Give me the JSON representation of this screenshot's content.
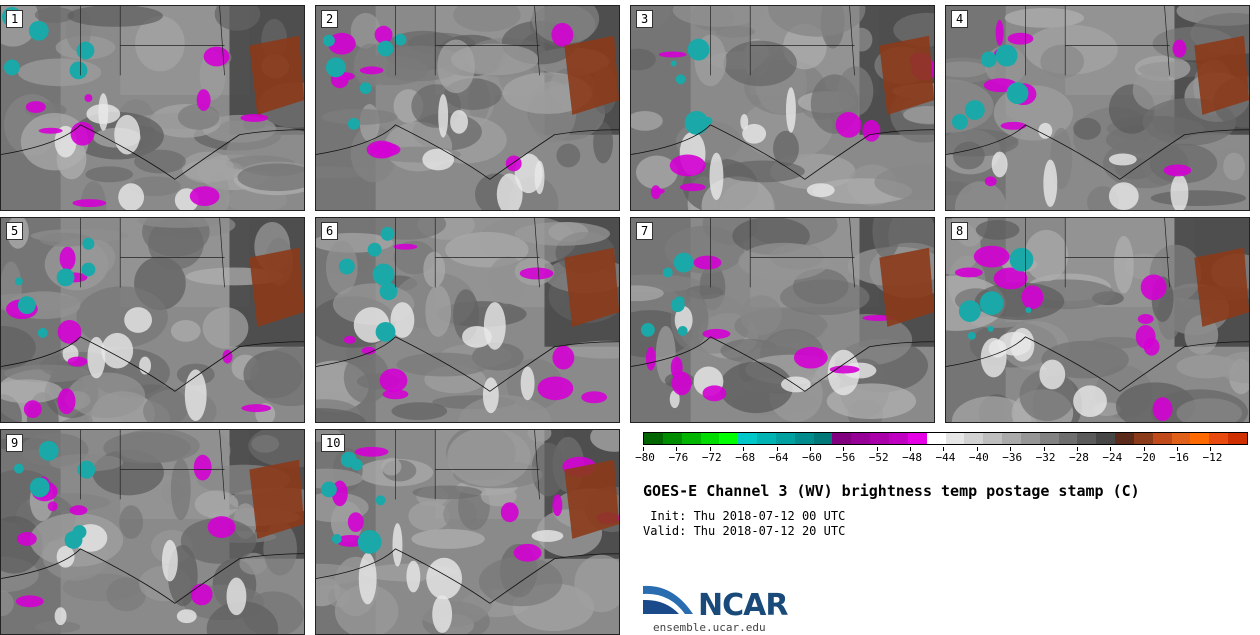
{
  "panels": [
    {
      "label": "1"
    },
    {
      "label": "2"
    },
    {
      "label": "3"
    },
    {
      "label": "4"
    },
    {
      "label": "5"
    },
    {
      "label": "6"
    },
    {
      "label": "7"
    },
    {
      "label": "8"
    },
    {
      "label": "9"
    },
    {
      "label": "10"
    }
  ],
  "colorbar": {
    "colors": [
      "#006400",
      "#008c00",
      "#00b400",
      "#00dc00",
      "#00ff00",
      "#00c8c8",
      "#00b4b4",
      "#00a0a0",
      "#008c8c",
      "#007878",
      "#800080",
      "#960096",
      "#aa00aa",
      "#c000c0",
      "#e600e6",
      "#ffffff",
      "#e6e6e6",
      "#d2d2d2",
      "#bebebe",
      "#aaaaaa",
      "#969696",
      "#828282",
      "#6e6e6e",
      "#5a5a5a",
      "#464646",
      "#5a2a1a",
      "#8b3a1a",
      "#c04a1a",
      "#e0601a",
      "#ff6a00",
      "#e84a10",
      "#d03000"
    ],
    "tick_labels": [
      "−80",
      "−76",
      "−72",
      "−68",
      "−64",
      "−60",
      "−56",
      "−52",
      "−48",
      "−44",
      "−40",
      "−36",
      "−32",
      "−28",
      "−24",
      "−20",
      "−16",
      "−12"
    ]
  },
  "title": "GOES-E Channel 3 (WV) brightness temp postage stamp (C)",
  "init": " Init: Thu 2018-07-12 00 UTC",
  "valid": "Valid: Thu 2018-07-12 20 UTC",
  "logo": {
    "text": "NCAR",
    "site": "ensemble.ucar.edu"
  }
}
